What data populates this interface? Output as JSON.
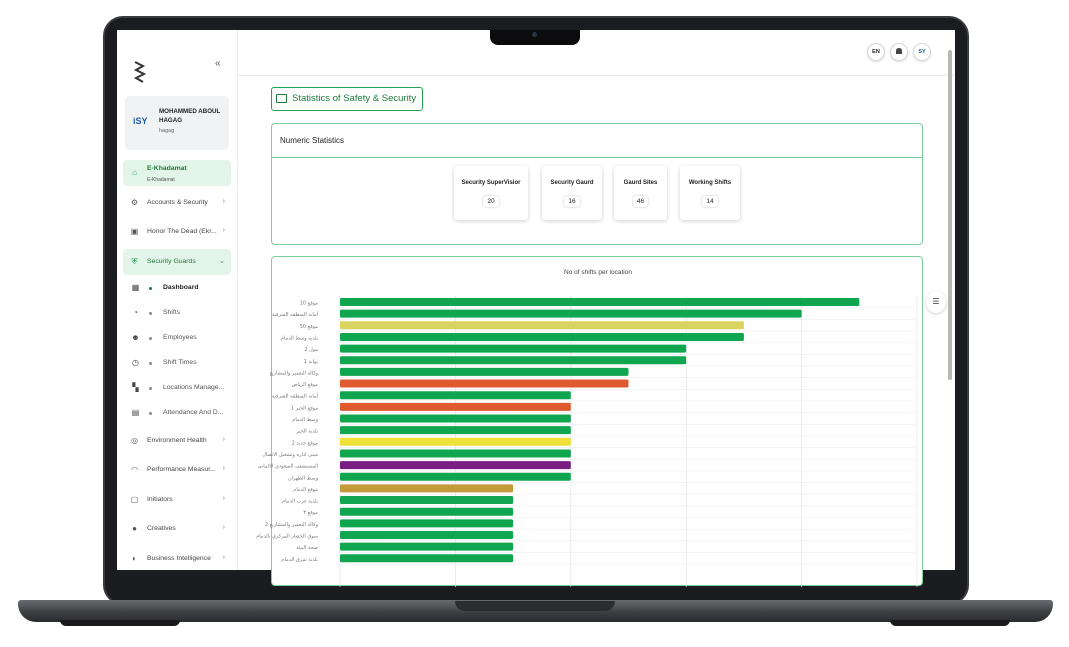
{
  "user": {
    "avatar_text": "SY",
    "name": "MOHAMMED ABOUL HAGAG",
    "handle": "hagag"
  },
  "nav": {
    "collapse_icon": "double-chevron-left-icon",
    "active_section": {
      "label": "E-Khadamat",
      "sub": "E-Khadamat"
    },
    "items": [
      {
        "label": "Accounts & Security",
        "icon": "users-gear-icon"
      },
      {
        "label": "Honor The Dead (Ekr...",
        "icon": "id-card-icon"
      },
      {
        "label": "Security Guards",
        "icon": "shield-icon"
      }
    ],
    "sub_items": [
      {
        "label": "Dashboard",
        "icon": "grid-icon"
      },
      {
        "label": "Shifts",
        "icon": "clock-pin-icon"
      },
      {
        "label": "Employees",
        "icon": "employee-icon"
      },
      {
        "label": "Shift Times",
        "icon": "clock-icon"
      },
      {
        "label": "Locations Manage...",
        "icon": "map-icon"
      },
      {
        "label": "Attendance And D...",
        "icon": "clipboard-icon"
      }
    ],
    "bottom_items": [
      {
        "label": "Environment Health",
        "icon": "globe-icon"
      },
      {
        "label": "Performance Measur...",
        "icon": "gauge-icon"
      },
      {
        "label": "Initiators",
        "icon": "document-icon"
      },
      {
        "label": "Creatives",
        "icon": "bulb-icon"
      },
      {
        "label": "Business Intelligence",
        "icon": "chart-icon"
      }
    ]
  },
  "topbar": {
    "lang": "EN",
    "bell_icon": "bell-icon",
    "avatar_text": "SY"
  },
  "page": {
    "title": "Statistics of Safety & Security"
  },
  "numeric": {
    "heading": "Numeric Statistics",
    "stats": [
      {
        "label": "Security SuperVisior",
        "value": "20"
      },
      {
        "label": "Security Gaurd",
        "value": "16"
      },
      {
        "label": "Gaurd Sites",
        "value": "46"
      },
      {
        "label": "Working Shifts",
        "value": "14"
      }
    ]
  },
  "chart_data": {
    "type": "bar",
    "orientation": "horizontal",
    "title": "No of shifts per location",
    "grid": true,
    "xlim": [
      0,
      10
    ],
    "categories": [
      "موقع 10",
      "أمانة المنطقة الشرقية",
      "موقع 50",
      "بلدية وسط الدمام",
      "مول 2",
      "بوابة 1",
      "وكالة التعمير والمشاريع",
      "موقع الرياض",
      "أمانة المنطقة الشرقية",
      "موقع الخبر 1",
      "وسط الدمام",
      "بلدية الخبر",
      "موقع جديد 2",
      "مبنى اداره وتشغيل الاتصال",
      "المستشفى السعودي الالماني",
      "وسط الظهران",
      "موقع الدمام",
      "بلدية غرب الدمام",
      "موقع ٣",
      "وكالة التعمير والمشاريع 2",
      "سوق الخضار المركزي بالدمام",
      "صحة البيئة",
      "بلدية شرق الدمام"
    ],
    "values": [
      9,
      8,
      7,
      7,
      6,
      6,
      5,
      5,
      4,
      4,
      4,
      4,
      4,
      4,
      4,
      4,
      3,
      3,
      3,
      3,
      3,
      3,
      3
    ],
    "colors": [
      "#10a650",
      "#10a650",
      "#dbd35f",
      "#10a650",
      "#10a650",
      "#10a650",
      "#10a650",
      "#e05a2f",
      "#10a650",
      "#e05a2f",
      "#10a650",
      "#10a650",
      "#f0e13a",
      "#10a650",
      "#7a1e84",
      "#10a650",
      "#c49a39",
      "#10a650",
      "#10a650",
      "#10a650",
      "#10a650",
      "#10a650",
      "#10a650"
    ]
  }
}
